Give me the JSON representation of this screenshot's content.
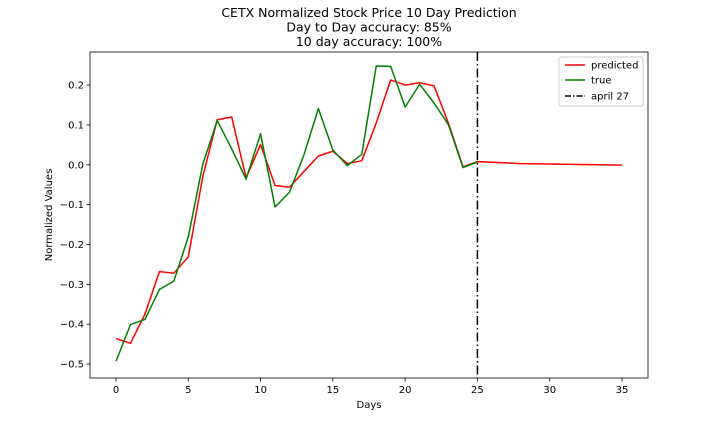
{
  "chart_data": {
    "type": "line",
    "title_lines": [
      "CETX Normalized Stock Price 10 Day Prediction",
      "Day to Day accuracy: 85%",
      "10 day accuracy: 100%"
    ],
    "xlabel": "Days",
    "ylabel": "Normalized Values",
    "xlim": [
      -1.8,
      36.8
    ],
    "ylim": [
      -0.535,
      0.283
    ],
    "xticks": [
      0,
      5,
      10,
      15,
      20,
      25,
      30,
      35
    ],
    "yticks": [
      -0.5,
      -0.4,
      -0.3,
      -0.2,
      -0.1,
      0.0,
      0.1,
      0.2
    ],
    "ytick_labels": [
      "−0.5",
      "−0.4",
      "−0.3",
      "−0.2",
      "−0.1",
      "0.0",
      "0.1",
      "0.2"
    ],
    "grid": false,
    "legend_position": "top-right",
    "series": [
      {
        "name": "predicted",
        "color": "#ff0000",
        "x": [
          0,
          1,
          2,
          3,
          4,
          5,
          6,
          7,
          8,
          9,
          10,
          11,
          12,
          13,
          14,
          15,
          16,
          17,
          18,
          19,
          20,
          21,
          22,
          23,
          24,
          25,
          28,
          35
        ],
        "y": [
          -0.436,
          -0.448,
          -0.375,
          -0.268,
          -0.272,
          -0.231,
          -0.03,
          0.113,
          0.12,
          -0.033,
          0.051,
          -0.052,
          -0.056,
          -0.017,
          0.022,
          0.034,
          0.003,
          0.01,
          0.105,
          0.213,
          0.2,
          0.206,
          0.198,
          0.104,
          -0.005,
          0.008,
          0.003,
          -0.001
        ]
      },
      {
        "name": "true",
        "color": "#008000",
        "x": [
          0,
          1,
          2,
          3,
          4,
          5,
          6,
          7,
          8,
          9,
          10,
          11,
          12,
          13,
          14,
          15,
          16,
          17,
          18,
          19,
          20,
          21,
          22,
          23,
          24,
          25
        ],
        "y": [
          -0.493,
          -0.401,
          -0.388,
          -0.313,
          -0.292,
          -0.181,
          0.001,
          0.111,
          0.04,
          -0.036,
          0.078,
          -0.106,
          -0.069,
          0.025,
          0.141,
          0.037,
          -0.002,
          0.026,
          0.248,
          0.247,
          0.145,
          0.202,
          0.155,
          0.1,
          -0.007,
          0.007
        ]
      }
    ],
    "vline": {
      "name": "april 27",
      "x": 25,
      "color": "#000000",
      "style": "dashdot"
    }
  }
}
